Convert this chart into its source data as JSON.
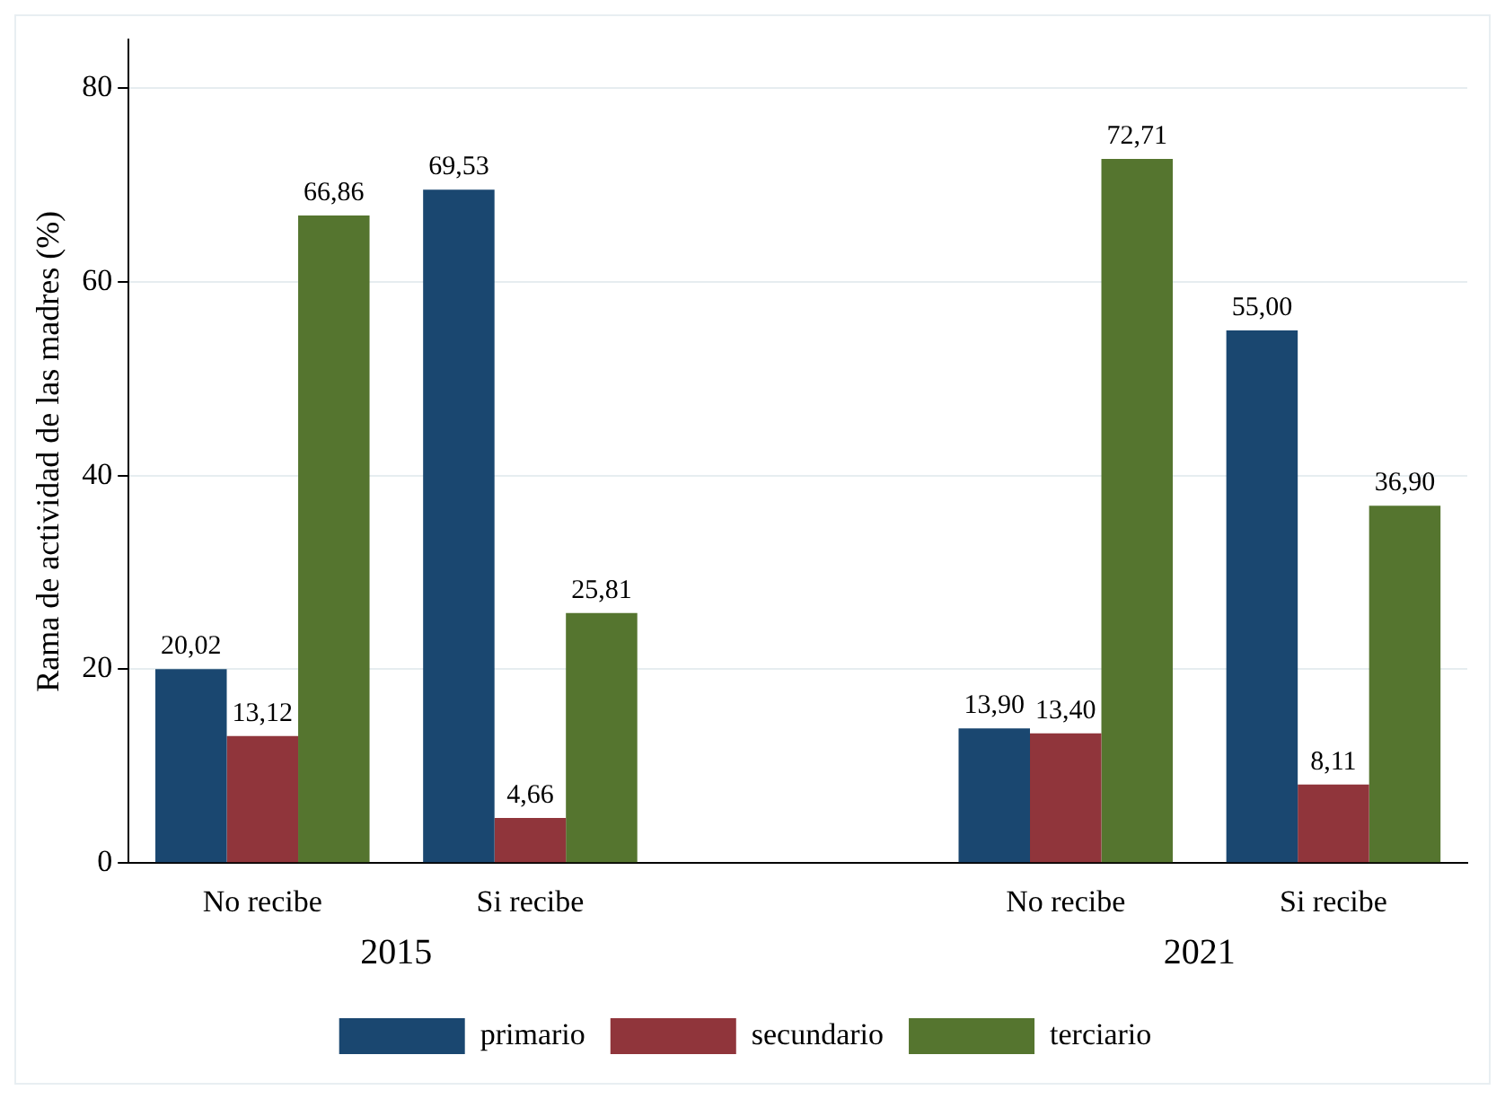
{
  "chart_data": {
    "type": "bar",
    "ylabel": "Rama de actividad de las madres (%)",
    "categories": [
      "No recibe",
      "Si recibe",
      null,
      "No recibe",
      "Si recibe"
    ],
    "series": [
      {
        "name": "primario",
        "color": "#1a4770",
        "values": [
          20.02,
          69.53,
          null,
          13.9,
          55.0
        ],
        "value_labels": [
          "20,02",
          "69,53",
          null,
          "13,90",
          "55,00"
        ]
      },
      {
        "name": "secundario",
        "color": "#90353b",
        "values": [
          13.12,
          4.66,
          null,
          13.4,
          8.11
        ],
        "value_labels": [
          "13,12",
          "4,66",
          null,
          "13,40",
          "8,11"
        ]
      },
      {
        "name": "terciario",
        "color": "#55752f",
        "values": [
          66.86,
          25.81,
          null,
          72.71,
          36.9
        ],
        "value_labels": [
          "66,86",
          "25,81",
          null,
          "72,71",
          "36,90"
        ]
      }
    ],
    "annotations": [
      "2015",
      "2021"
    ],
    "ylim": [
      0,
      85
    ],
    "yticks": [
      0,
      20,
      40,
      60,
      80
    ],
    "grid": "y",
    "legend": "bottom"
  }
}
